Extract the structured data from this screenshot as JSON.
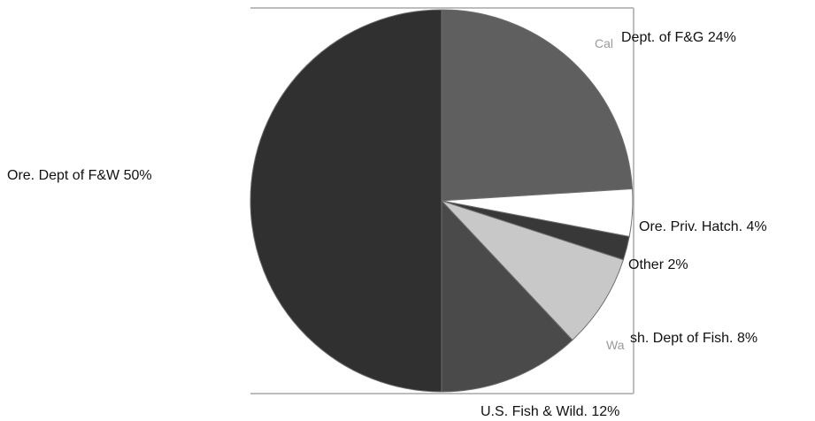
{
  "chart_data": {
    "type": "pie",
    "title": "",
    "slices": [
      {
        "label": "Dept. of F&G 24%",
        "value": 24,
        "color": "#5f5f5f",
        "ghost": "Cal"
      },
      {
        "label": "Ore. Priv. Hatch. 4%",
        "value": 4,
        "color": "#ffffff"
      },
      {
        "label": "Other 2%",
        "value": 2,
        "color": "#383838"
      },
      {
        "label": "sh. Dept of Fish. 8%",
        "value": 8,
        "color": "#c8c8c8",
        "ghost": "Wa"
      },
      {
        "label": "U.S. Fish & Wild. 12%",
        "value": 12,
        "color": "#4a4a4a"
      },
      {
        "label": "Ore. Dept of F&W 50%",
        "value": 50,
        "color": "#303030"
      }
    ],
    "start_angle_deg": 0,
    "direction": "clockwise",
    "legend": "none"
  }
}
